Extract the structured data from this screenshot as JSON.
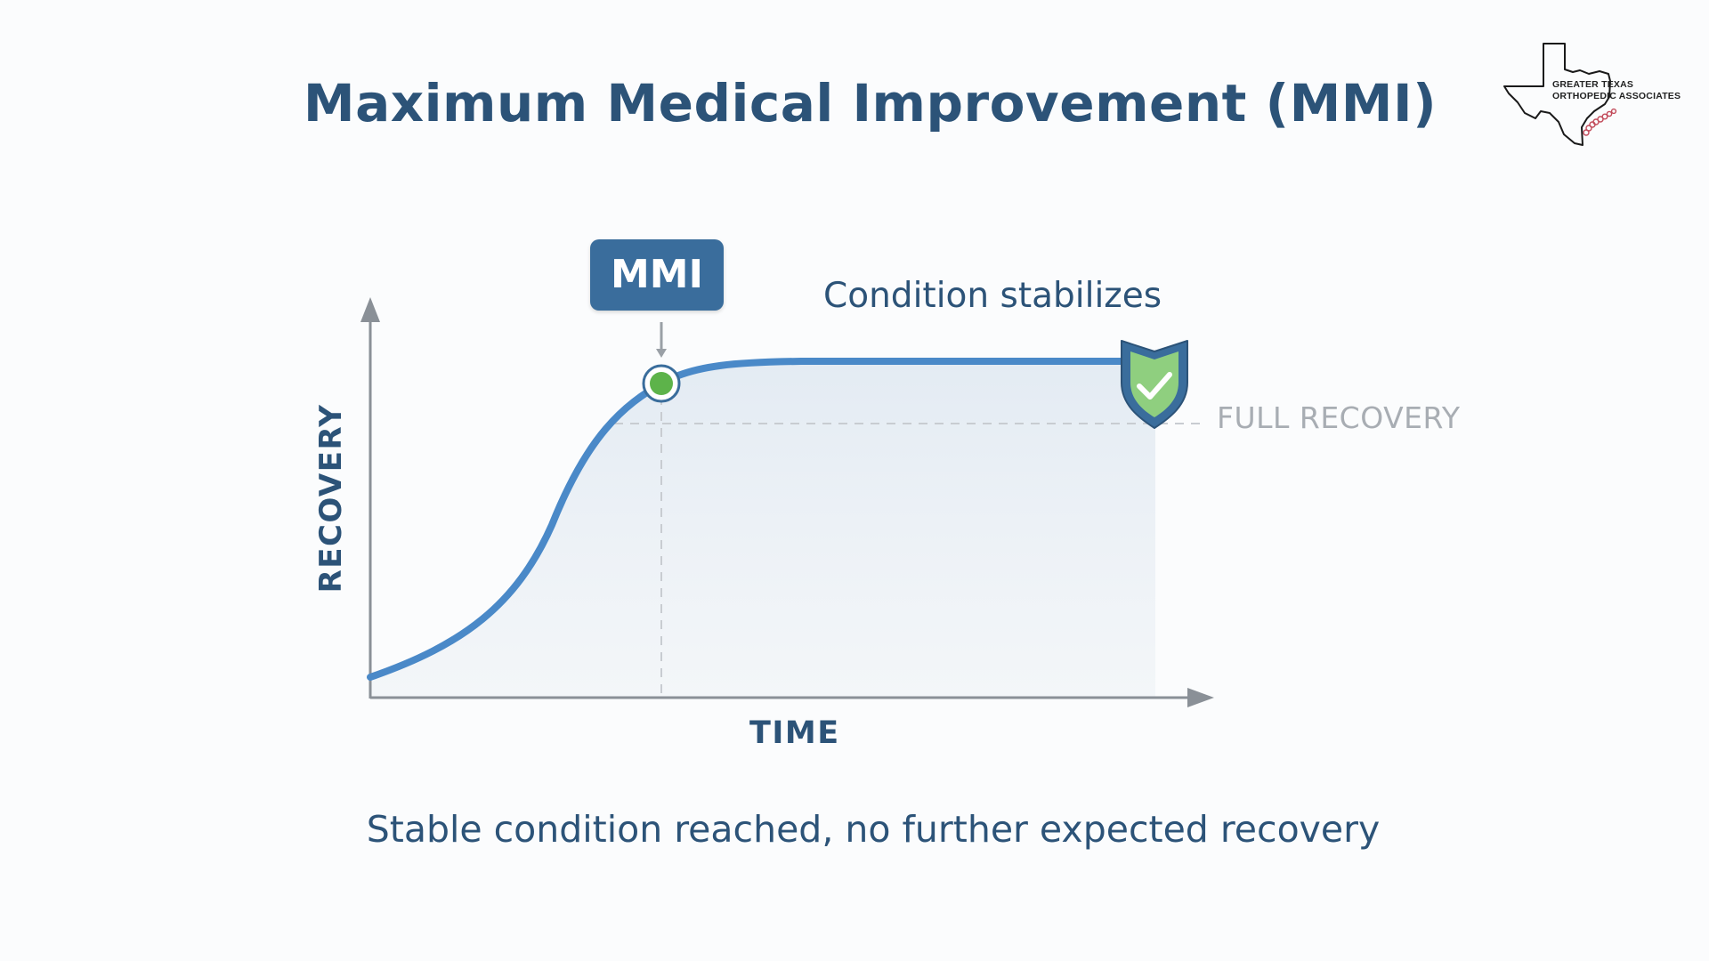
{
  "slide": {
    "title": "Maximum Medical Improvement (MMI)",
    "subtitle": "Stable condition reached, no further expected recovery"
  },
  "logo": {
    "line1": "GREATER TEXAS",
    "line2": "ORTHOPEDIC ASSOCIATES",
    "icons": [
      "texas-outline-icon",
      "spine-icon"
    ]
  },
  "diagram": {
    "mmi_label": "MMI",
    "annotation": "Condition stabilizes",
    "reference_label": "FULL RECOVERY",
    "y_axis_label": "RECOVERY",
    "x_axis_label": "TIME",
    "icons": [
      "mmi-point-icon",
      "shield-check-icon"
    ]
  },
  "colors": {
    "title": "#2c5378",
    "curve": "#4a89c8",
    "badge": "#3a6d9c",
    "point": "#5db34a",
    "shield": "#3a6d9c",
    "shield_fill": "#8fcf7f",
    "reference_line": "#c8ccd1",
    "reference_text": "#a8adb3",
    "axis": "#8a9097"
  }
}
